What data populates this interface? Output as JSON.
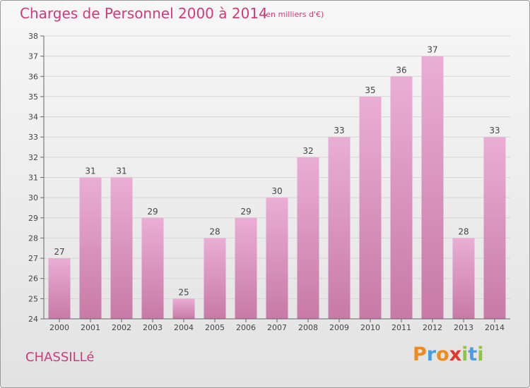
{
  "header": {
    "title": "Charges de Personnel 2000 à 2014",
    "subtitle": "(en milliers d'€)"
  },
  "footer": {
    "commune": "CHASSILLé",
    "logo": [
      "P",
      "r",
      "o",
      "x",
      "i",
      "t",
      "i"
    ]
  },
  "colors": {
    "title": "#cc3c7c",
    "bar_light": "#eaaed4",
    "bar_dark": "#c77aa5",
    "gridline": "#d6d6d6",
    "logo": [
      "#f08a1c",
      "#4a9de0",
      "#f08a1c",
      "#e8342a",
      "#8cc63f",
      "#4a9de0",
      "#8cc63f"
    ]
  },
  "chart_data": {
    "type": "bar",
    "categories": [
      "2000",
      "2001",
      "2002",
      "2003",
      "2004",
      "2005",
      "2006",
      "2007",
      "2008",
      "2009",
      "2010",
      "2011",
      "2012",
      "2013",
      "2014"
    ],
    "values": [
      27,
      31,
      31,
      29,
      25,
      28,
      29,
      30,
      32,
      33,
      35,
      36,
      37,
      28,
      33
    ],
    "ylim": [
      24,
      38
    ],
    "yticks": [
      24,
      25,
      26,
      27,
      28,
      29,
      30,
      31,
      32,
      33,
      34,
      35,
      36,
      37,
      38
    ],
    "grid": true,
    "title": "Charges de Personnel 2000 à 2014",
    "xlabel": "",
    "ylabel": ""
  }
}
